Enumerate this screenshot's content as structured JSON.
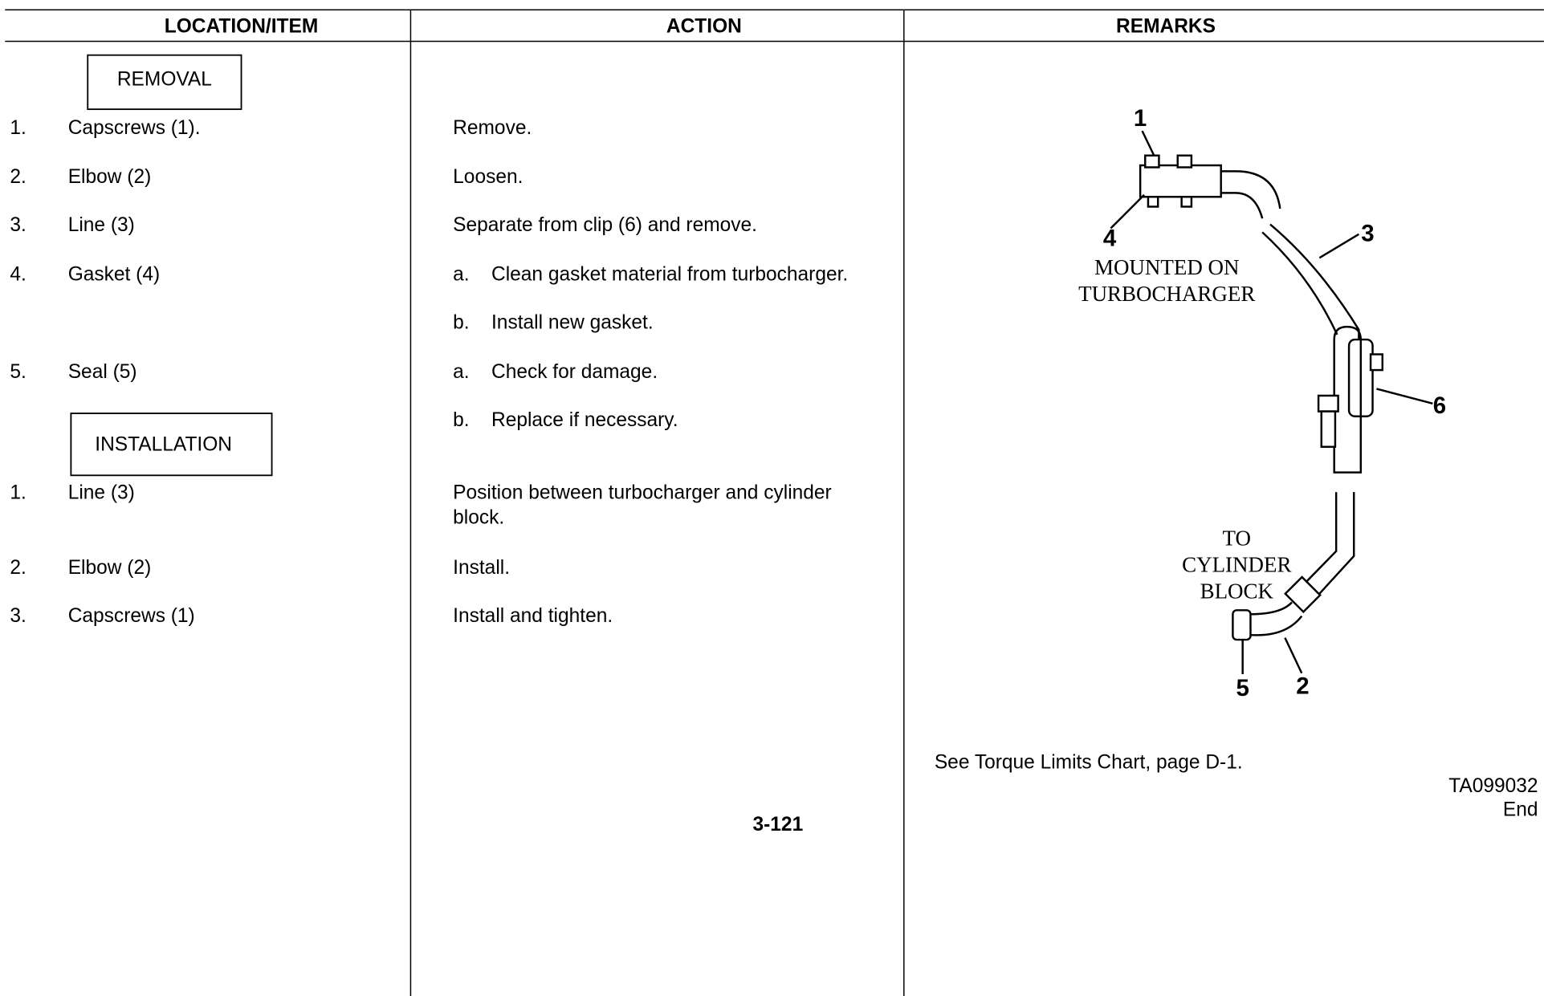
{
  "columns": [
    "LOCATION/ITEM",
    "ACTION",
    "REMARKS"
  ],
  "removal": {
    "heading": "REMOVAL",
    "steps": [
      {
        "number": "1.",
        "item": "Capscrews (1).",
        "action": "Remove."
      },
      {
        "number": "2.",
        "item": "Elbow (2)",
        "action": "Loosen."
      },
      {
        "number": "3.",
        "item": "Line (3)",
        "action": "Separate from clip (6) and remove."
      },
      {
        "number": "4.",
        "item": "Gasket (4)",
        "substeps": [
          {
            "letter": "a.",
            "text": "Clean gasket material from turbocharger."
          },
          {
            "letter": "b.",
            "text": "Install new gasket."
          }
        ]
      },
      {
        "number": "5.",
        "item": "Seal (5)",
        "substeps": [
          {
            "letter": "a.",
            "text": "Check for damage."
          },
          {
            "letter": "b.",
            "text": "Replace if necessary."
          }
        ]
      }
    ]
  },
  "installation": {
    "heading": "INSTALLATION",
    "steps": [
      {
        "number": "1.",
        "item": "Line (3)",
        "action_lines": [
          "Position between turbocharger and cylinder",
          "block."
        ]
      },
      {
        "number": "2.",
        "item": "Elbow (2)",
        "action": "Install."
      },
      {
        "number": "3.",
        "item": "Capscrews (1)",
        "action": "Install and tighten."
      }
    ]
  },
  "illustration": {
    "callouts": [
      "1",
      "2",
      "3",
      "4",
      "5",
      "6"
    ],
    "label_mounted": [
      "MOUNTED ON",
      "TURBOCHARGER"
    ],
    "label_block": [
      "TO",
      "CYLINDER",
      "BLOCK"
    ]
  },
  "remarks": "See Torque Limits Chart, page D-1.",
  "figure_id": "TA099032",
  "end": "End",
  "page_number": "3-121"
}
